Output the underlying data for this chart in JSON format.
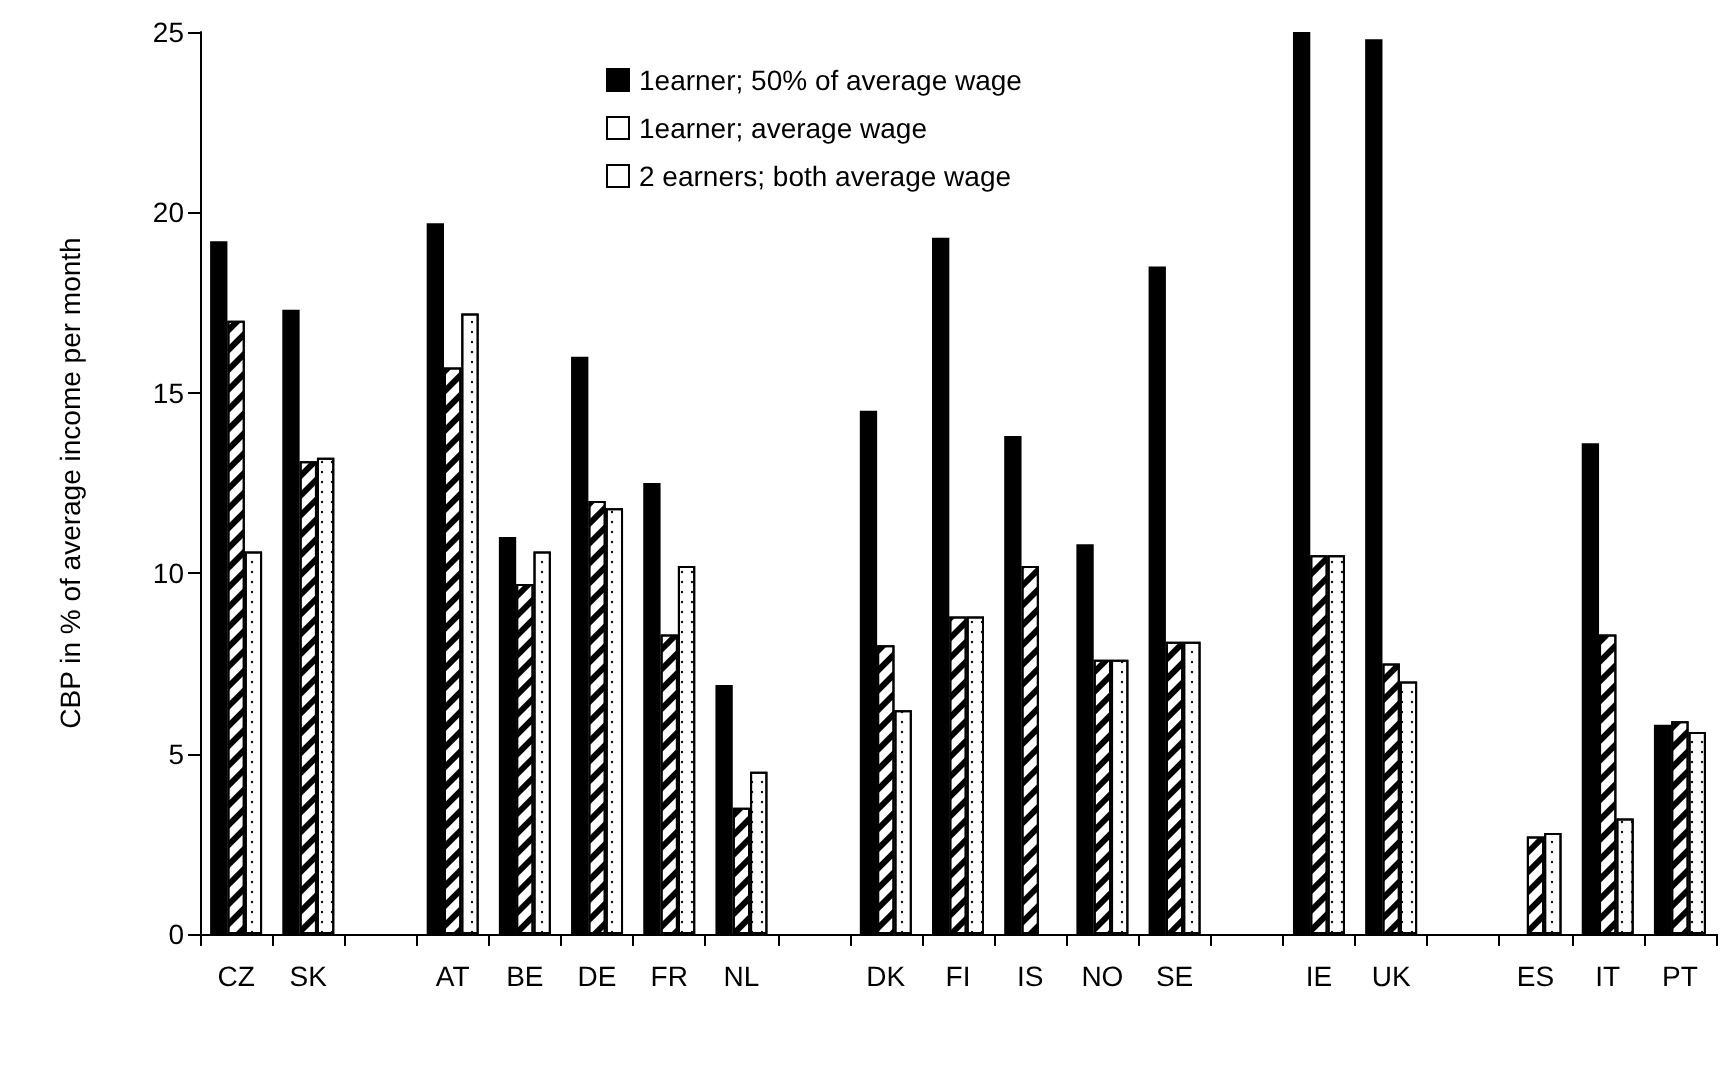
{
  "chart_data": {
    "type": "bar",
    "ylabel": "CBP in % of average income per month",
    "categories": [
      "CZ",
      "SK",
      null,
      "AT",
      "BE",
      "DE",
      "FR",
      "NL",
      null,
      "DK",
      "FI",
      "IS",
      "NO",
      "SE",
      null,
      "IE",
      "UK",
      null,
      "ES",
      "IT",
      "PT"
    ],
    "series": [
      {
        "name": "1earner; 50% of average wage",
        "color": "#000000",
        "values": [
          19.2,
          17.3,
          null,
          19.7,
          11.0,
          16.0,
          12.5,
          6.9,
          null,
          14.5,
          19.3,
          13.8,
          10.8,
          18.5,
          null,
          25,
          24.8,
          null,
          null,
          13.6,
          5.8
        ]
      },
      {
        "name": "1earner; average wage",
        "color": "#ffffff",
        "values": [
          17.0,
          13.1,
          null,
          15.7,
          9.7,
          12.0,
          8.3,
          3.5,
          null,
          8.0,
          8.8,
          10.2,
          7.6,
          8.1,
          null,
          10.5,
          7.5,
          null,
          2.7,
          8.3,
          5.9
        ]
      },
      {
        "name": "2 earners; both average wage",
        "color": "#ffffff",
        "values": [
          10.6,
          13.2,
          null,
          17.2,
          10.6,
          11.8,
          10.2,
          4.5,
          null,
          6.2,
          8.8,
          null,
          7.6,
          8.1,
          null,
          10.5,
          7.0,
          null,
          2.8,
          3.2,
          5.6
        ]
      }
    ],
    "ylim": [
      0,
      25
    ],
    "yticks": [
      0,
      5,
      10,
      15,
      20,
      25
    ],
    "grid": false,
    "legend": "top"
  }
}
